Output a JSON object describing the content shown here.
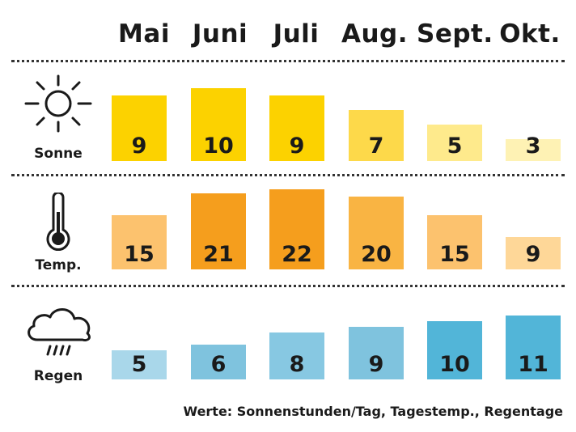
{
  "months": [
    "Mai",
    "Juni",
    "Juli",
    "Aug.",
    "Sept.",
    "Okt."
  ],
  "footer": "Werte: Sonnenstunden/Tag, Tagestemp., Regentage",
  "chart_data": {
    "type": "bar",
    "categories": [
      "Mai",
      "Juni",
      "Juli",
      "Aug.",
      "Sept.",
      "Okt."
    ],
    "series": [
      {
        "name": "Sonne",
        "icon": "sun-icon",
        "values": [
          9,
          10,
          9,
          7,
          5,
          3
        ],
        "colors": [
          "#fcd200",
          "#fcd200",
          "#fcd200",
          "#fdd94a",
          "#feea8c",
          "#fef2b4"
        ]
      },
      {
        "name": "Temp.",
        "icon": "thermometer-icon",
        "values": [
          15,
          21,
          22,
          20,
          15,
          9
        ],
        "colors": [
          "#fcc26e",
          "#f59e1d",
          "#f59e1d",
          "#f9b443",
          "#fcc26e",
          "#fed798"
        ]
      },
      {
        "name": "Regen",
        "icon": "rain-cloud-icon",
        "values": [
          5,
          6,
          8,
          9,
          10,
          11
        ],
        "colors": [
          "#a9d7ea",
          "#7fc3de",
          "#87c8e2",
          "#7fc3de",
          "#52b5d8",
          "#52b5d8"
        ]
      }
    ]
  }
}
